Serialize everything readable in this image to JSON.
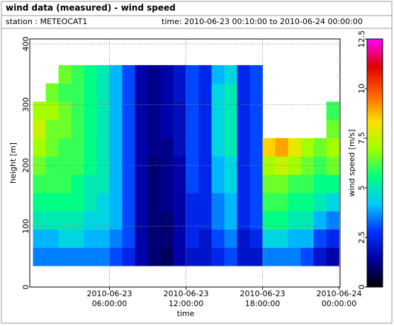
{
  "chart_data": {
    "type": "heatmap",
    "title": "wind data (measured) - wind speed",
    "station": "station : METEOCAT1",
    "period": "time: 2010-06-23 00:10:00 to 2010-06-24 00:00:00",
    "xlabel": "time",
    "ylabel": "height [m]",
    "colorbar_label": "wind speed [m/s]",
    "x": [
      "2010-06-23 00:00:00",
      "2010-06-23 01:00:00",
      "2010-06-23 02:00:00",
      "2010-06-23 03:00:00",
      "2010-06-23 04:00:00",
      "2010-06-23 05:00:00",
      "2010-06-23 06:00:00",
      "2010-06-23 07:00:00",
      "2010-06-23 08:00:00",
      "2010-06-23 09:00:00",
      "2010-06-23 10:00:00",
      "2010-06-23 11:00:00",
      "2010-06-23 12:00:00",
      "2010-06-23 13:00:00",
      "2010-06-23 14:00:00",
      "2010-06-23 15:00:00",
      "2010-06-23 16:00:00",
      "2010-06-23 17:00:00",
      "2010-06-23 18:00:00",
      "2010-06-23 19:00:00",
      "2010-06-23 20:00:00",
      "2010-06-23 21:00:00",
      "2010-06-23 22:00:00",
      "2010-06-23 23:00:00"
    ],
    "y": [
      50,
      80,
      110,
      140,
      170,
      200,
      230,
      260,
      290,
      320,
      350
    ],
    "z": [
      [
        3.5,
        4,
        5,
        5.5,
        6,
        6.5,
        7,
        7.5,
        7,
        null,
        null
      ],
      [
        3.5,
        4,
        5,
        5.5,
        6,
        6,
        6.5,
        6.5,
        7,
        6.5,
        null
      ],
      [
        3.5,
        4.5,
        5,
        5.5,
        6,
        6,
        6,
        6.5,
        6.5,
        6,
        6.5
      ],
      [
        3.5,
        4.5,
        5,
        5.5,
        5.5,
        6,
        6,
        6,
        6,
        6,
        6
      ],
      [
        3.5,
        4,
        4.5,
        5,
        5,
        5.5,
        5.5,
        5.5,
        5.5,
        5.5,
        5.5
      ],
      [
        3.5,
        4,
        4.5,
        4.5,
        5,
        5,
        5,
        5,
        5,
        5,
        5
      ],
      [
        3,
        3.5,
        4,
        4,
        4,
        4,
        4,
        4,
        4,
        4,
        4
      ],
      [
        2.5,
        3,
        3,
        3,
        3,
        3,
        3,
        3,
        3,
        3,
        3
      ],
      [
        1.5,
        1.5,
        1.5,
        1.5,
        1.5,
        1.5,
        1.5,
        1.5,
        1.5,
        1.5,
        1.5
      ],
      [
        1,
        1,
        1,
        1,
        1,
        1,
        1.2,
        1.2,
        1.2,
        1.2,
        1.2
      ],
      [
        0.8,
        1,
        1,
        1.2,
        1.2,
        1.2,
        1.2,
        1.5,
        1.5,
        1.5,
        1.5
      ],
      [
        1.5,
        1.5,
        1.5,
        1.5,
        1.5,
        1.5,
        1.8,
        1.8,
        1.8,
        2,
        2
      ],
      [
        2,
        2.5,
        2.5,
        2.5,
        3,
        3,
        3,
        3,
        3,
        3,
        3
      ],
      [
        2,
        2,
        2.5,
        2.5,
        2.5,
        2.5,
        2.5,
        2.5,
        2.5,
        2.5,
        2.5
      ],
      [
        2.5,
        3,
        3.5,
        3.5,
        4,
        4,
        4.5,
        4.5,
        4.5,
        4.5,
        4
      ],
      [
        3,
        3.5,
        4,
        4,
        4.5,
        4.5,
        5,
        5,
        5,
        5,
        4.5
      ],
      [
        2,
        2,
        2.5,
        2.5,
        2.5,
        2.5,
        2.5,
        2.5,
        2.5,
        2.5,
        2.5
      ],
      [
        2,
        2.5,
        3,
        3,
        3,
        3,
        3,
        3,
        3,
        3,
        3
      ],
      [
        3.5,
        4.5,
        5.5,
        6,
        6.5,
        7,
        8.5,
        null,
        null,
        null,
        null
      ],
      [
        3.5,
        4.5,
        5.5,
        6,
        6.5,
        7.5,
        9,
        null,
        null,
        null,
        null
      ],
      [
        3.5,
        4,
        5,
        5.5,
        6,
        7,
        8,
        null,
        null,
        null,
        null
      ],
      [
        3,
        4,
        5,
        5.5,
        6,
        6.5,
        7,
        null,
        null,
        null,
        null
      ],
      [
        2,
        3,
        4,
        5,
        5.5,
        6,
        6.5,
        null,
        null,
        null,
        null
      ],
      [
        1.5,
        2.5,
        3.5,
        4.5,
        5.5,
        6.5,
        7,
        6.5,
        6,
        null,
        null
      ]
    ],
    "xlim": [
      "2010-06-22 23:45:00",
      "2010-06-24 00:05:00"
    ],
    "xticks": [
      {
        "value": "2010-06-23 06:00:00",
        "label": "2010-06-23 06:00:00"
      },
      {
        "value": "2010-06-23 12:00:00",
        "label": "2010-06-23 12:00:00"
      },
      {
        "value": "2010-06-23 18:00:00",
        "label": "2010-06-23 18:00:00"
      },
      {
        "value": "2010-06-24 00:00:00",
        "label": "2010-06-24 00:00:00"
      }
    ],
    "ylim": [
      0,
      408
    ],
    "yticks": [
      0,
      100,
      200,
      300,
      400
    ],
    "clim": [
      0,
      12.5
    ],
    "cticks": [
      0,
      2.5,
      5,
      7.5,
      10,
      12.5
    ],
    "colorscale": [
      "#000000",
      "#0000a0",
      "#0030ff",
      "#00c8ff",
      "#00ff80",
      "#a0ff00",
      "#ffe000",
      "#ff6000",
      "#e00000",
      "#ff00ff"
    ],
    "grid": true
  }
}
